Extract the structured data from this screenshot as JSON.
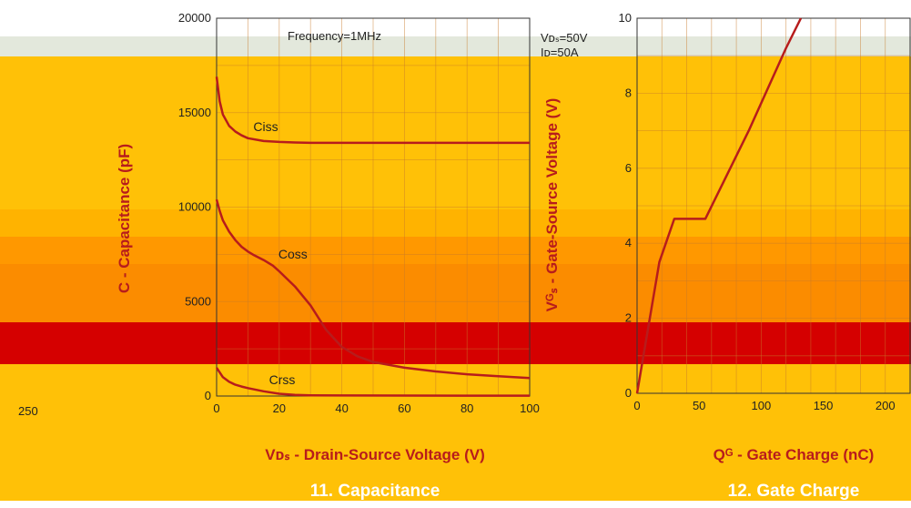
{
  "colors": {
    "band_top": "#e3e8dc",
    "band_yellow": "#ffc107",
    "band_amber": "#ffb300",
    "band_orange": "#ff9800",
    "band_deep_orange": "#fb8c00",
    "band_red": "#d50000",
    "curve": "#b71c1c",
    "curve_bright": "#e53935",
    "grid": "#c97a2a",
    "frame": "#333333"
  },
  "chart_data": [
    {
      "type": "line",
      "title": "11. Capacitance",
      "xlabel": "Vᴅₛ - Drain-Source Voltage (V)",
      "ylabel": "C - Capacitance (pF)",
      "xlim": [
        0,
        100
      ],
      "ylim": [
        0,
        20000
      ],
      "x_ticks": [
        0,
        20,
        40,
        60,
        80,
        100
      ],
      "y_ticks": [
        0,
        5000,
        10000,
        15000,
        20000
      ],
      "grid": true,
      "annotations": [
        "Frequency=1MHz",
        "250"
      ],
      "series": [
        {
          "name": "Ciss",
          "x": [
            0,
            1,
            2,
            4,
            6,
            8,
            10,
            15,
            20,
            25,
            30,
            40,
            60,
            80,
            100
          ],
          "y": [
            16900,
            15600,
            14900,
            14300,
            14000,
            13800,
            13650,
            13500,
            13450,
            13420,
            13400,
            13400,
            13400,
            13400,
            13400
          ]
        },
        {
          "name": "Coss",
          "x": [
            0,
            1,
            2,
            4,
            6,
            8,
            10,
            12,
            15,
            18,
            20,
            25,
            30,
            35,
            40,
            45,
            50,
            60,
            70,
            80,
            90,
            100
          ],
          "y": [
            10400,
            9800,
            9300,
            8700,
            8250,
            7900,
            7650,
            7450,
            7200,
            6900,
            6600,
            5800,
            4800,
            3500,
            2600,
            2100,
            1800,
            1500,
            1300,
            1150,
            1050,
            950
          ]
        },
        {
          "name": "Crss",
          "x": [
            0,
            2,
            4,
            6,
            8,
            10,
            15,
            20,
            25,
            30,
            40,
            60,
            80,
            100
          ],
          "y": [
            1500,
            1000,
            750,
            600,
            500,
            420,
            250,
            120,
            60,
            40,
            30,
            25,
            20,
            20
          ]
        }
      ]
    },
    {
      "type": "line",
      "title": "12. Gate Charge",
      "xlabel": "Qᴳ - Gate Charge (nC)",
      "ylabel": "Vᴳₛ - Gate-Source Voltage (V)",
      "xlim": [
        0,
        220
      ],
      "ylim": [
        0,
        10
      ],
      "x_ticks": [
        0,
        50,
        100,
        150,
        200
      ],
      "y_ticks": [
        0,
        2,
        4,
        6,
        8,
        10
      ],
      "grid": true,
      "annotations": [
        "Vᴅₛ=50V",
        "Iᴅ=50A"
      ],
      "series": [
        {
          "name": "",
          "x": [
            0,
            18,
            30,
            55,
            90,
            120,
            132
          ],
          "y": [
            0,
            3.5,
            4.65,
            4.65,
            7.0,
            9.2,
            10.0
          ]
        }
      ]
    }
  ]
}
